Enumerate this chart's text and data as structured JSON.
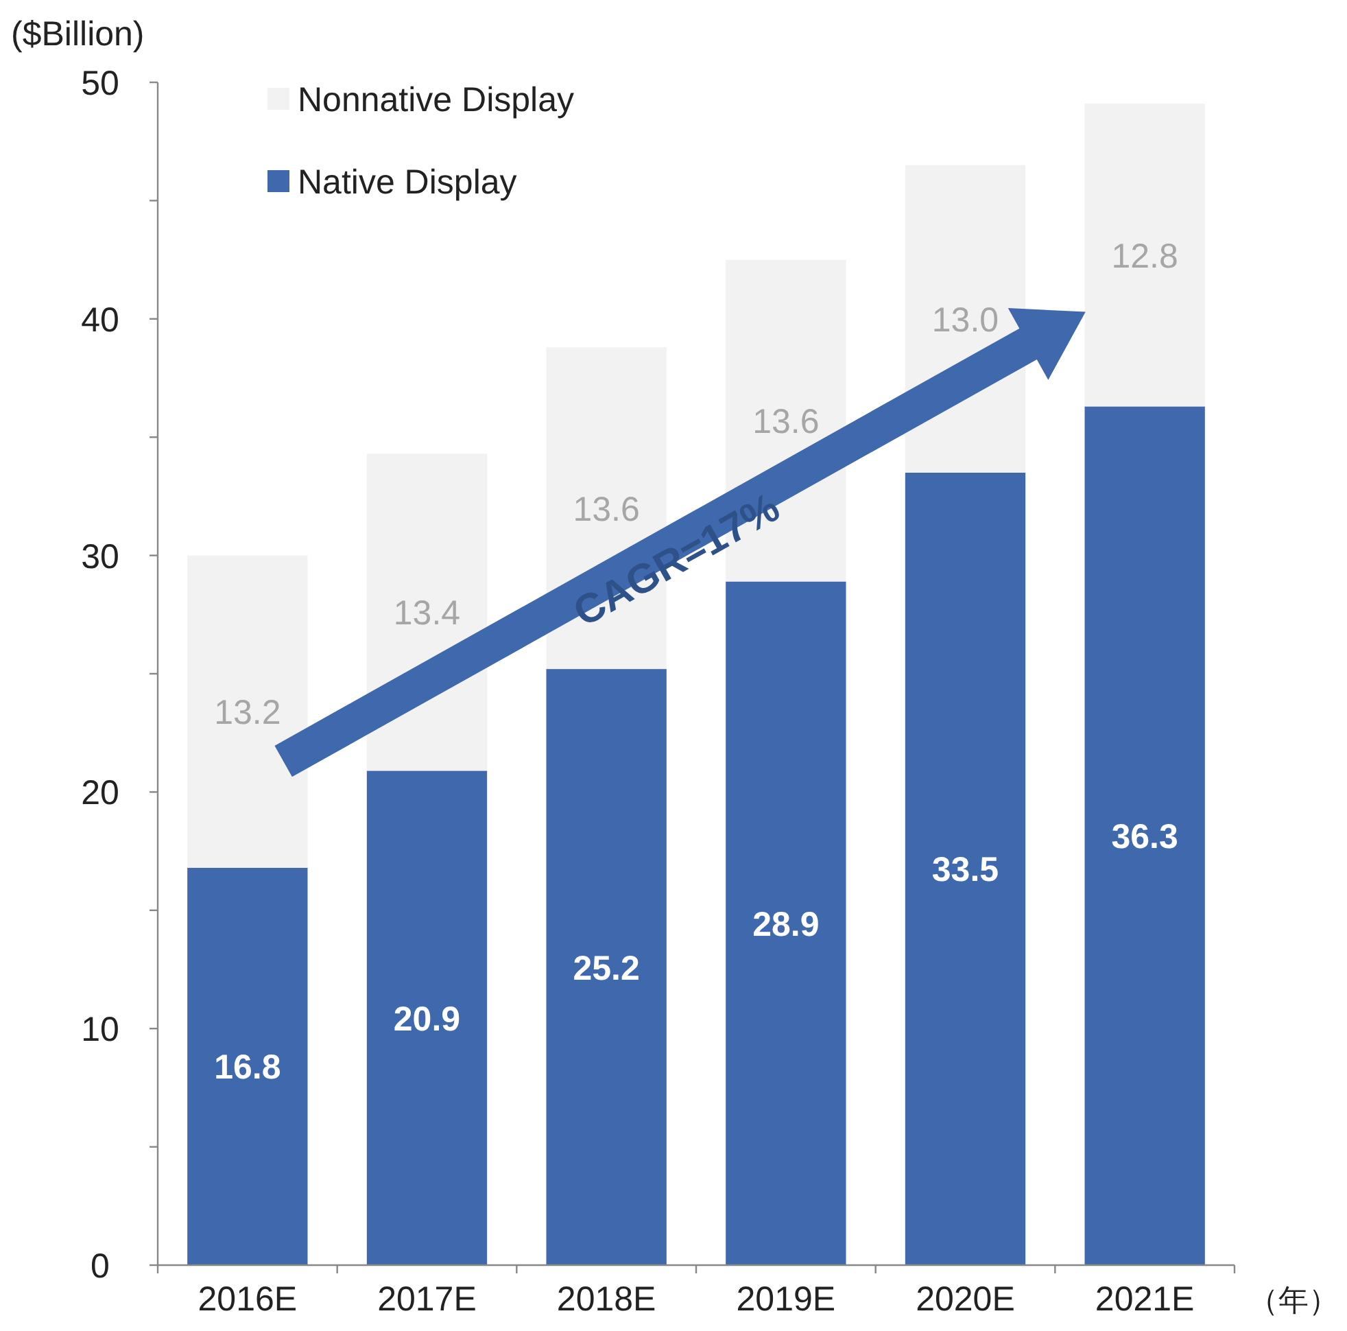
{
  "chart_data": {
    "type": "bar",
    "stacked": true,
    "ylabel": "($Billion)",
    "xlabel": "（年）",
    "categories": [
      "2016E",
      "2017E",
      "2018E",
      "2019E",
      "2020E",
      "2021E"
    ],
    "series": [
      {
        "name": "Native Display",
        "color": "#3f68ad",
        "values": [
          16.8,
          20.9,
          25.2,
          28.9,
          33.5,
          36.3
        ],
        "value_labels": [
          "16.8",
          "20.9",
          "25.2",
          "28.9",
          "33.5",
          "36.3"
        ]
      },
      {
        "name": "Nonnative Display",
        "color": "#f2f2f2",
        "values": [
          13.2,
          13.4,
          13.6,
          13.6,
          13.0,
          12.8
        ],
        "value_labels": [
          "13.2",
          "13.4",
          "13.6",
          "13.6",
          "13.0",
          "12.8"
        ]
      }
    ],
    "ylim": [
      0,
      50
    ],
    "yticks": [
      0,
      {
        "value": 5,
        "label": null
      },
      10,
      {
        "value": 15,
        "label": null
      },
      20,
      {
        "value": 25,
        "label": null
      },
      30,
      {
        "value": 35,
        "label": null
      },
      40,
      {
        "value": 45,
        "label": null
      },
      50
    ],
    "legend": "top left",
    "annotations": [
      "CAGR=17%"
    ]
  }
}
